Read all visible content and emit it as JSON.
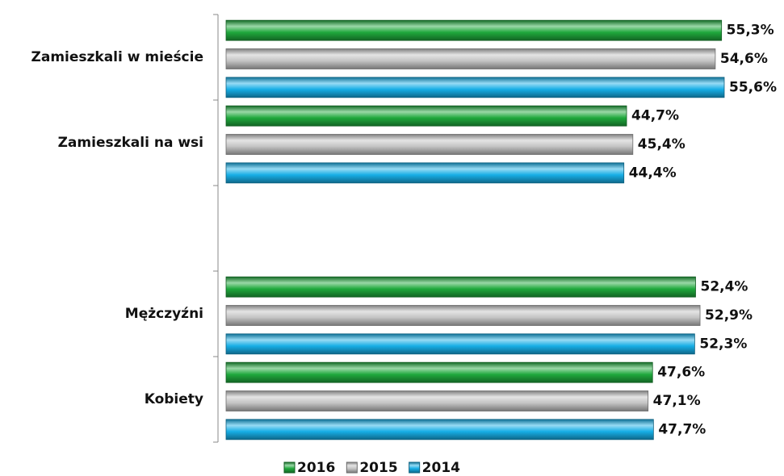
{
  "chart_data": {
    "type": "hbar",
    "categories": [
      "Zamieszkali w mieście",
      "Zamieszkali na wsi",
      null,
      "Mężczyźni",
      "Kobiety"
    ],
    "series": [
      {
        "name": "2016",
        "color": "#1fa83c",
        "values": [
          55.3,
          44.7,
          null,
          52.4,
          47.6
        ],
        "value_labels": [
          "55,3%",
          "44,7%",
          null,
          "52,4%",
          "47,6%"
        ]
      },
      {
        "name": "2015",
        "color": "#c4c4c4",
        "values": [
          54.6,
          45.4,
          null,
          52.9,
          47.1
        ],
        "value_labels": [
          "54,6%",
          "45,4%",
          null,
          "52,9%",
          "47,1%"
        ]
      },
      {
        "name": "2014",
        "color": "#17aee6",
        "values": [
          55.6,
          44.4,
          null,
          52.3,
          47.7
        ],
        "value_labels": [
          "55,6%",
          "44,4%",
          null,
          "52,3%",
          "47,7%"
        ]
      }
    ],
    "legend": "bottom"
  }
}
